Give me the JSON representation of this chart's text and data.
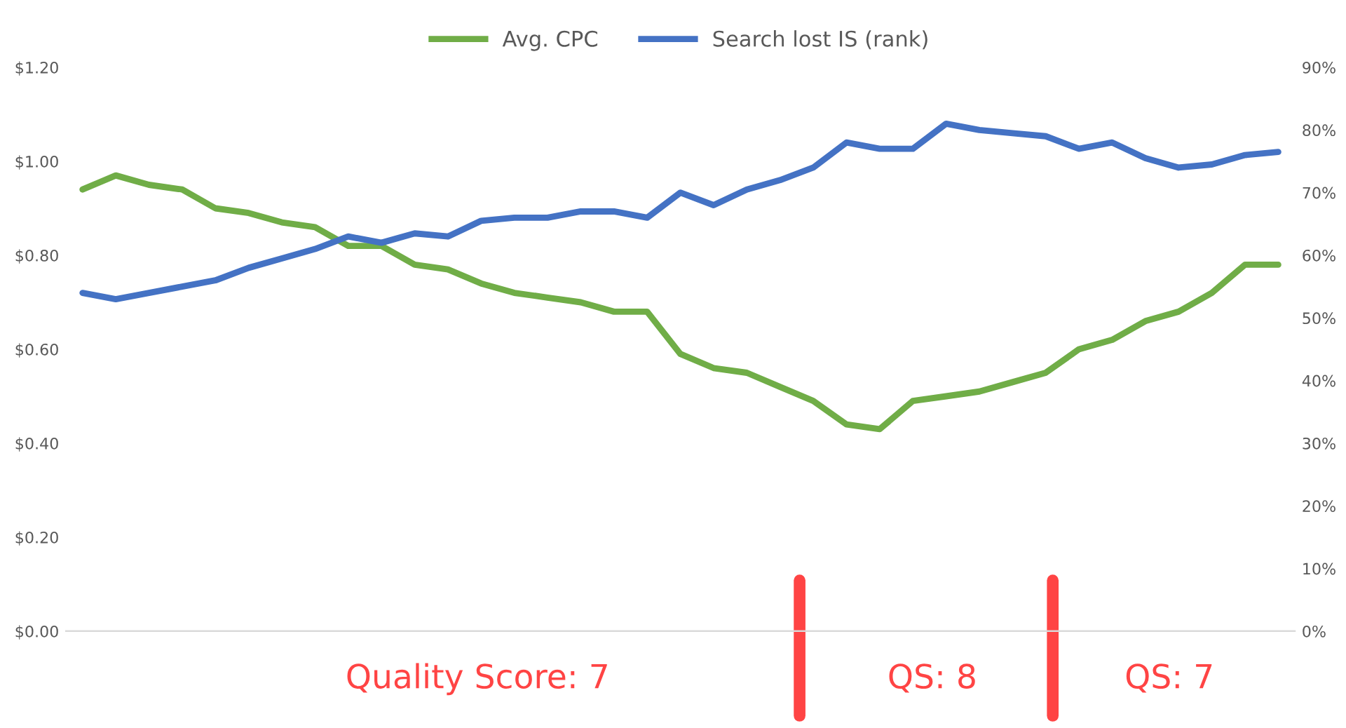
{
  "chart_data": {
    "type": "line",
    "categories": [
      null,
      null,
      null,
      null,
      null,
      null,
      null,
      null,
      null,
      null,
      null,
      null,
      null,
      null,
      null,
      null,
      null,
      null,
      null,
      null,
      null,
      null,
      null,
      null,
      null,
      null,
      null,
      null,
      null,
      null,
      null,
      null,
      null,
      null,
      null,
      null,
      null
    ],
    "series": [
      {
        "name": "Avg. CPC",
        "color": "#70ad47",
        "values": [
          0.94,
          0.97,
          0.95,
          0.94,
          0.9,
          0.89,
          0.87,
          0.86,
          0.82,
          0.82,
          0.78,
          0.77,
          0.74,
          0.72,
          0.71,
          0.7,
          0.68,
          0.68,
          0.59,
          0.56,
          0.55,
          0.52,
          0.49,
          0.44,
          0.43,
          0.49,
          0.5,
          0.51,
          0.53,
          0.55,
          0.6,
          0.62,
          0.66,
          0.68,
          0.72,
          0.78,
          0.78
        ]
      },
      {
        "name": "Search lost IS (rank)",
        "color": "#4472c4",
        "axis": "y2",
        "values": [
          54,
          53,
          54,
          55,
          56,
          58,
          59.5,
          61,
          63,
          62,
          63.5,
          63,
          65.5,
          66,
          66,
          67,
          67,
          66,
          70,
          68,
          70.5,
          72,
          74,
          78,
          77,
          77,
          81,
          80,
          79.5,
          79,
          77,
          78,
          75.5,
          74,
          74.5,
          76,
          76.5
        ]
      }
    ],
    "ylim": [
      0,
      1.2
    ],
    "yticks": [
      {
        "value": 0,
        "label": "$0.00"
      },
      {
        "value": 0.2,
        "label": "$0.20"
      },
      {
        "value": 0.4,
        "label": "$0.40"
      },
      {
        "value": 0.6,
        "label": "$0.60"
      },
      {
        "value": 0.8,
        "label": "$0.80"
      },
      {
        "value": 1.0,
        "label": "$1.00"
      },
      {
        "value": 1.2,
        "label": "$1.20"
      }
    ],
    "y2lim": [
      0,
      90
    ],
    "y2ticks": [
      {
        "value": 0,
        "label": "0%"
      },
      {
        "value": 10,
        "label": "10%"
      },
      {
        "value": 20,
        "label": "20%"
      },
      {
        "value": 30,
        "label": "30%"
      },
      {
        "value": 40,
        "label": "40%"
      },
      {
        "value": 50,
        "label": "50%"
      },
      {
        "value": 60,
        "label": "60%"
      },
      {
        "value": 70,
        "label": "70%"
      },
      {
        "value": 80,
        "label": "80%"
      },
      {
        "value": 90,
        "label": "90%"
      }
    ],
    "grid": false,
    "legend": "top",
    "marker": "none",
    "line_style": "solid",
    "annotations": [
      "Quality Score: 7",
      "QS: 8",
      "QS: 7"
    ]
  }
}
